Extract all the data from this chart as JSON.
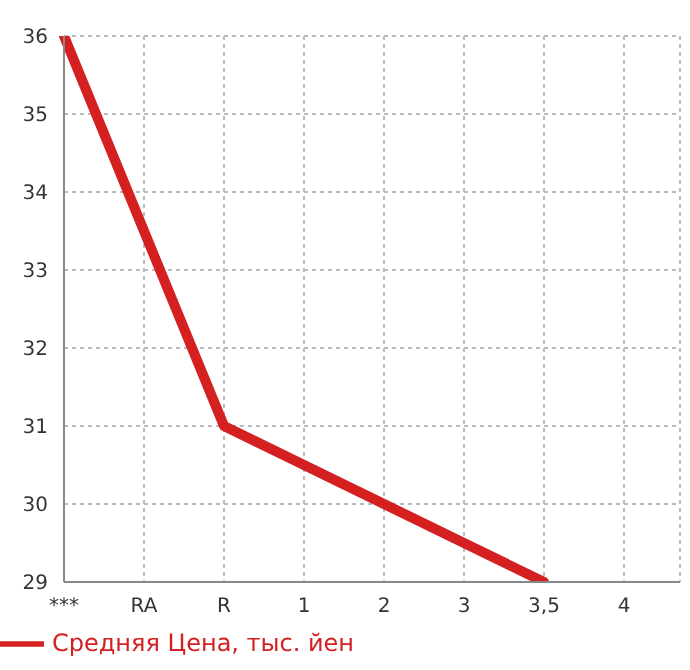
{
  "chart_data": {
    "type": "line",
    "categories": [
      "***",
      "RA",
      "R",
      "1",
      "2",
      "3",
      "3,5",
      "4"
    ],
    "series": [
      {
        "name": "Средняя Цена, тыс. йен",
        "color": "#d42020",
        "values": [
          36,
          33.5,
          31,
          30.5,
          30,
          29.5,
          29,
          null
        ]
      }
    ],
    "ylim": [
      29,
      36
    ],
    "yticks": [
      29,
      30,
      31,
      32,
      33,
      34,
      35,
      36
    ],
    "grid": true,
    "legend": "bottom left",
    "marker": "none",
    "line_style": "solid"
  }
}
